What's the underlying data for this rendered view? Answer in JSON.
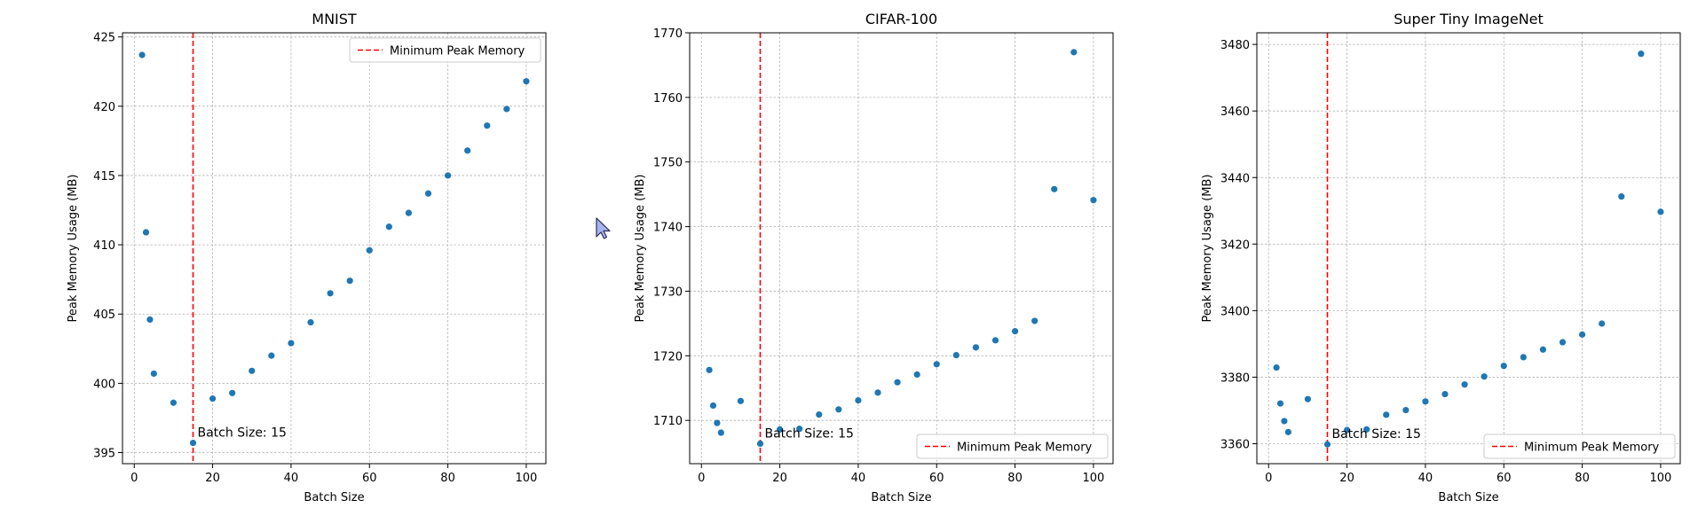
{
  "chart_data": [
    {
      "type": "scatter",
      "title": "MNIST",
      "xlabel": "Batch Size",
      "ylabel": "Peak Memory Usage (MB)",
      "xlim": [
        -3,
        105
      ],
      "ylim": [
        394.2,
        425.3
      ],
      "xticks": [
        0,
        20,
        40,
        60,
        80,
        100
      ],
      "yticks": [
        395,
        400,
        405,
        410,
        415,
        420,
        425
      ],
      "grid": true,
      "point_color": "#1f77b4",
      "x": [
        2,
        3,
        4,
        5,
        10,
        15,
        20,
        25,
        30,
        35,
        40,
        45,
        50,
        55,
        60,
        65,
        70,
        75,
        80,
        85,
        90,
        95,
        100
      ],
      "y": [
        423.7,
        410.9,
        404.6,
        400.7,
        398.6,
        395.7,
        398.9,
        399.3,
        400.9,
        402.0,
        402.9,
        404.4,
        406.5,
        407.4,
        409.6,
        411.3,
        412.3,
        413.7,
        415.0,
        416.8,
        418.6,
        419.8,
        421.8
      ],
      "vline": {
        "x": 15,
        "color": "#ff0000",
        "label": "Minimum Peak Memory"
      },
      "annotation": {
        "text": "Batch Size: 15",
        "x": 15,
        "y": 395.7
      },
      "legend": {
        "entries": [
          "Minimum Peak Memory"
        ],
        "placement": "upper-right"
      }
    },
    {
      "type": "scatter",
      "title": "CIFAR-100",
      "xlabel": "Batch Size",
      "ylabel": "Peak Memory Usage (MB)",
      "xlim": [
        -3,
        105
      ],
      "ylim": [
        1703.3,
        1770.0
      ],
      "xticks": [
        0,
        20,
        40,
        60,
        80,
        100
      ],
      "yticks": [
        1710,
        1720,
        1730,
        1740,
        1750,
        1760,
        1770
      ],
      "grid": true,
      "point_color": "#1f77b4",
      "x": [
        2,
        3,
        4,
        5,
        10,
        15,
        20,
        25,
        30,
        35,
        40,
        45,
        50,
        55,
        60,
        65,
        70,
        75,
        80,
        85,
        90,
        95,
        100
      ],
      "y": [
        1717.8,
        1712.3,
        1709.6,
        1708.1,
        1713.0,
        1706.4,
        1708.6,
        1708.7,
        1710.9,
        1711.7,
        1713.1,
        1714.3,
        1715.9,
        1717.1,
        1718.7,
        1720.1,
        1721.3,
        1722.4,
        1723.8,
        1725.4,
        1745.8,
        1767.0,
        1744.1
      ],
      "vline": {
        "x": 15,
        "color": "#ff0000",
        "label": "Minimum Peak Memory"
      },
      "annotation": {
        "text": "Batch Size: 15",
        "x": 15,
        "y": 1706.4
      },
      "legend": {
        "entries": [
          "Minimum Peak Memory"
        ],
        "placement": "lower-right"
      }
    },
    {
      "type": "scatter",
      "title": "Super Tiny ImageNet",
      "xlabel": "Batch Size",
      "ylabel": "Peak Memory Usage (MB)",
      "xlim": [
        -3,
        105
      ],
      "ylim": [
        3354.0,
        3483.5
      ],
      "xticks": [
        0,
        20,
        40,
        60,
        80,
        100
      ],
      "yticks": [
        3360,
        3380,
        3400,
        3420,
        3440,
        3460,
        3480
      ],
      "grid": true,
      "point_color": "#1f77b4",
      "x": [
        2,
        3,
        4,
        5,
        10,
        15,
        20,
        25,
        30,
        35,
        40,
        45,
        50,
        55,
        60,
        65,
        70,
        75,
        80,
        85,
        90,
        95,
        100
      ],
      "y": [
        3382.9,
        3372.1,
        3366.8,
        3363.5,
        3373.4,
        3359.8,
        3364.1,
        3364.3,
        3368.7,
        3370.1,
        3372.7,
        3374.9,
        3377.8,
        3380.2,
        3383.4,
        3386.0,
        3388.3,
        3390.5,
        3392.8,
        3396.1,
        3434.3,
        3477.2,
        3429.7
      ],
      "vline": {
        "x": 15,
        "color": "#ff0000",
        "label": "Minimum Peak Memory"
      },
      "annotation": {
        "text": "Batch Size: 15",
        "x": 15,
        "y": 3359.8
      },
      "legend": {
        "entries": [
          "Minimum Peak Memory"
        ],
        "placement": "lower-right"
      }
    }
  ],
  "cursor": {
    "icon": "mouse-pointer-icon",
    "fill": "#a8b4f0"
  }
}
